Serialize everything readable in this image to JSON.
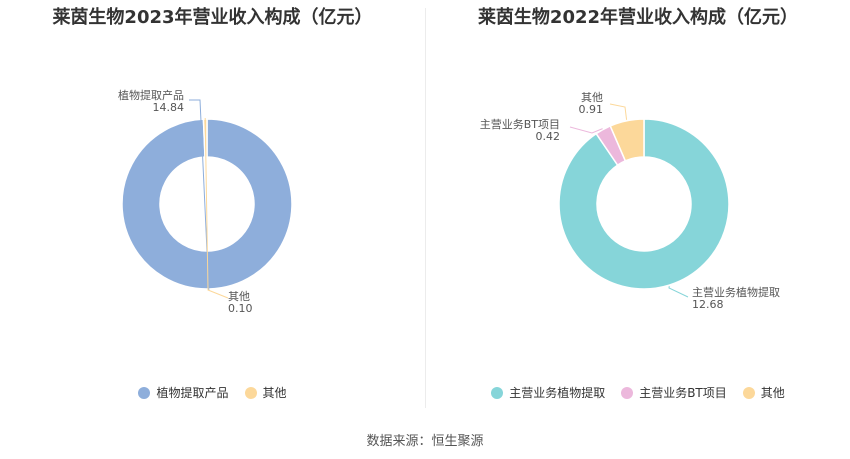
{
  "chart_data": [
    {
      "type": "pie",
      "title": "莱茵生物2023年营业收入构成（亿元）",
      "series": [
        {
          "name": "植物提取产品",
          "value": 14.84,
          "value_label": "14.84",
          "color": "#8eaedb"
        },
        {
          "name": "其他",
          "value": 0.1,
          "value_label": "0.10",
          "color": "#fcd89a"
        }
      ],
      "legend": [
        "植物提取产品",
        "其他"
      ],
      "donut": true,
      "legend_position": "bottom"
    },
    {
      "type": "pie",
      "title": "莱茵生物2022年营业收入构成（亿元）",
      "series": [
        {
          "name": "主营业务植物提取",
          "value": 12.68,
          "value_label": "12.68",
          "color": "#86d5d9"
        },
        {
          "name": "主营业务BT项目",
          "value": 0.42,
          "value_label": "0.42",
          "color": "#ecb8dc"
        },
        {
          "name": "其他",
          "value": 0.91,
          "value_label": "0.91",
          "color": "#fcd89a"
        }
      ],
      "legend": [
        "主营业务植物提取",
        "主营业务BT项目",
        "其他"
      ],
      "donut": true,
      "legend_position": "bottom"
    }
  ],
  "footer": {
    "source": "数据来源：恒生聚源"
  }
}
